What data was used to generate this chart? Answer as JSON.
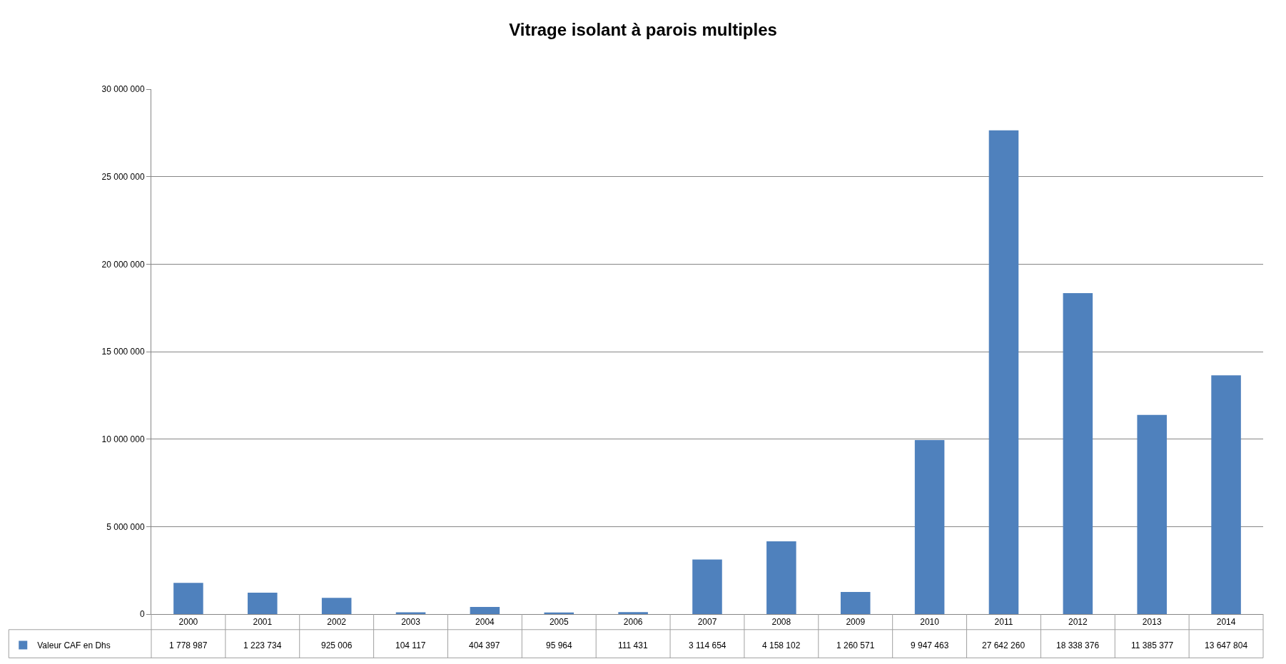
{
  "chart_data": {
    "type": "bar",
    "title": "Vitrage isolant à parois multiples",
    "categories": [
      "2000",
      "2001",
      "2002",
      "2003",
      "2004",
      "2005",
      "2006",
      "2007",
      "2008",
      "2009",
      "2010",
      "2011",
      "2012",
      "2013",
      "2014"
    ],
    "series": [
      {
        "name": "Valeur CAF en Dhs",
        "color": "#4f81bd",
        "values": [
          1778987,
          1223734,
          925006,
          104117,
          404397,
          95964,
          111431,
          3114654,
          4158102,
          1260571,
          9947463,
          27642260,
          18338376,
          11385377,
          13647804
        ],
        "value_labels": [
          "1 778 987",
          "1 223 734",
          "925 006",
          "104 117",
          "404 397",
          "95 964",
          "111 431",
          "3 114 654",
          "4 158 102",
          "1 260 571",
          "9 947 463",
          "27 642 260",
          "18 338 376",
          "11 385 377",
          "13 647 804"
        ]
      }
    ],
    "ylim": [
      0,
      30000000
    ],
    "yticks": [
      0,
      {
        "value": 5000000,
        "label": "5 000 000"
      },
      {
        "value": 10000000,
        "label": "10 000 000"
      },
      {
        "value": 15000000,
        "label": "15 000 000"
      },
      {
        "value": 20000000,
        "label": "20 000 000"
      },
      {
        "value": 25000000,
        "label": "25 000 000"
      },
      {
        "value": 30000000,
        "label": "30 000 000"
      }
    ],
    "grid": "y",
    "legend": "bottom left"
  }
}
